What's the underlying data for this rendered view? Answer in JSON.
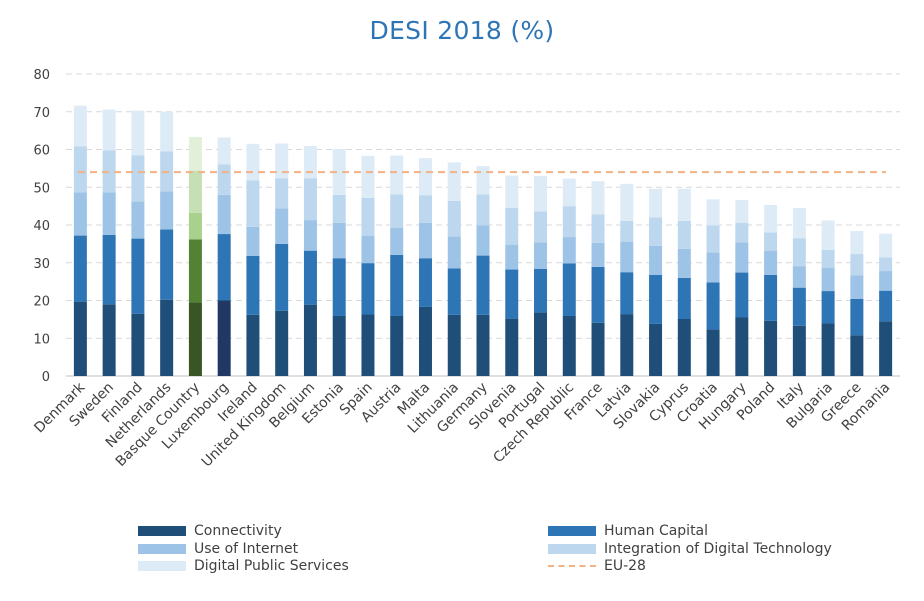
{
  "chart_data": {
    "type": "bar",
    "stacked": true,
    "title": "DESI 2018 (%)",
    "xlabel": "",
    "ylabel": "",
    "ylim": [
      0,
      80
    ],
    "yticks": [
      0,
      10,
      20,
      30,
      40,
      50,
      60,
      70,
      80
    ],
    "grid": true,
    "legend_position": "bottom",
    "categories": [
      "Denmark",
      "Sweden",
      "Finland",
      "Netherlands",
      "Basque Country",
      "Luxembourg",
      "Ireland",
      "United Kingdom",
      "Belgium",
      "Estonia",
      "Spain",
      "Austria",
      "Malta",
      "Lithuania",
      "Germany",
      "Slovenia",
      "Portugal",
      "Czech Republic",
      "France",
      "Latvia",
      "Slovakia",
      "Cyprus",
      "Croatia",
      "Hungary",
      "Poland",
      "Italy",
      "Bulgaria",
      "Greece",
      "Romania"
    ],
    "series": [
      {
        "name": "Connectivity",
        "color": "#1f4e79",
        "values": [
          19.7,
          19.0,
          16.5,
          20.2,
          19.5,
          20.0,
          16.2,
          17.3,
          18.9,
          15.9,
          16.3,
          15.9,
          18.3,
          16.2,
          16.2,
          15.2,
          16.8,
          15.9,
          14.1,
          16.4,
          13.8,
          15.1,
          12.3,
          15.5,
          14.6,
          13.3,
          13.9,
          10.8,
          14.5
        ]
      },
      {
        "name": "Human Capital",
        "color": "#2e75b6",
        "values": [
          17.5,
          18.4,
          19.9,
          18.6,
          16.7,
          17.6,
          15.6,
          17.7,
          14.3,
          15.3,
          13.6,
          16.2,
          12.9,
          12.3,
          15.7,
          13.0,
          11.6,
          13.9,
          14.8,
          11.1,
          13.0,
          10.9,
          12.5,
          11.9,
          12.2,
          10.1,
          8.6,
          9.6,
          8.1
        ]
      },
      {
        "name": "Use of Internet",
        "color": "#9dc3e6",
        "values": [
          11.4,
          11.2,
          9.8,
          10.1,
          7.0,
          10.4,
          7.7,
          9.4,
          8.1,
          9.4,
          7.2,
          7.1,
          9.4,
          8.5,
          8.0,
          6.6,
          7.0,
          7.0,
          6.4,
          8.1,
          7.7,
          7.7,
          7.9,
          8.0,
          6.4,
          5.7,
          6.2,
          6.3,
          5.2
        ]
      },
      {
        "name": "Integration of Digital Technology",
        "color": "#bdd7ee",
        "values": [
          12.2,
          11.2,
          12.3,
          10.6,
          11.2,
          8.1,
          12.3,
          8.0,
          11.1,
          7.4,
          10.1,
          8.9,
          7.3,
          9.4,
          8.2,
          9.7,
          8.2,
          8.2,
          7.5,
          5.5,
          7.5,
          7.4,
          7.2,
          5.2,
          4.8,
          7.4,
          4.7,
          5.6,
          3.6
        ]
      },
      {
        "name": "Digital Public Services",
        "color": "#ddebf7",
        "values": [
          10.8,
          10.8,
          11.8,
          10.5,
          8.9,
          7.1,
          9.7,
          9.2,
          8.5,
          12.1,
          11.1,
          10.3,
          9.8,
          10.2,
          7.5,
          8.6,
          9.4,
          7.3,
          8.8,
          9.8,
          7.6,
          8.5,
          6.9,
          6.0,
          7.3,
          8.0,
          7.8,
          6.1,
          6.3
        ]
      }
    ],
    "highlights": [
      {
        "category": "Basque Country",
        "colors": [
          "#375623",
          "#548235",
          "#a9d18e",
          "#c5e0b4",
          "#e2f0d9"
        ]
      },
      {
        "category": "Luxembourg",
        "colors": [
          "#203864",
          "#2e75b6",
          "#9dc3e6",
          "#bdd7ee",
          "#ddebf7"
        ]
      }
    ],
    "reference_line": {
      "name": "EU-28",
      "value": 54,
      "color": "#f4b183"
    }
  }
}
